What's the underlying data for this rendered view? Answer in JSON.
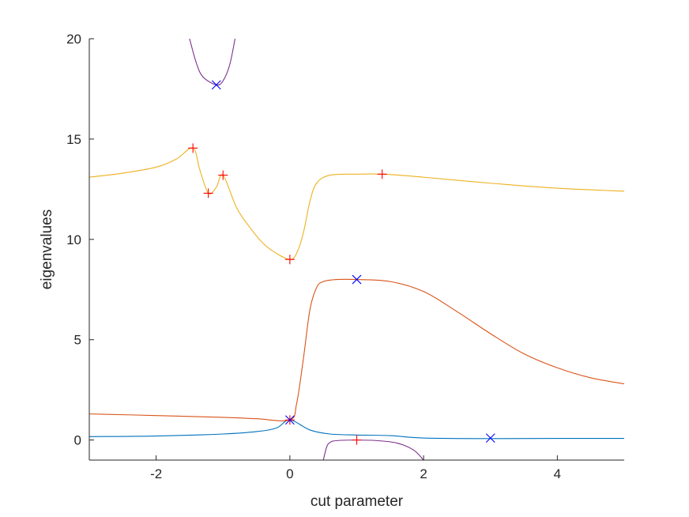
{
  "chart_data": {
    "type": "line",
    "xlabel": "cut parameter",
    "ylabel": "eigenvalues",
    "xlim": [
      -3,
      5
    ],
    "ylim": [
      -1,
      20
    ],
    "x_ticks": [
      -2,
      0,
      2,
      4
    ],
    "x_tick_labels": [
      "-2",
      "0",
      "2",
      "4"
    ],
    "y_ticks": [
      0,
      5,
      10,
      15,
      20
    ],
    "y_tick_labels": [
      "0",
      "5",
      "10",
      "15",
      "20"
    ],
    "grid": false,
    "legend": "none",
    "series": [
      {
        "color": "#0072BD",
        "points": [
          [
            -3,
            0.17
          ],
          [
            -2,
            0.2
          ],
          [
            -1,
            0.3
          ],
          [
            -0.5,
            0.42
          ],
          [
            -0.2,
            0.6
          ],
          [
            0,
            1.0
          ],
          [
            0.3,
            0.5
          ],
          [
            0.6,
            0.3
          ],
          [
            1.0,
            0.25
          ],
          [
            1.5,
            0.22
          ],
          [
            2.0,
            0.1
          ],
          [
            3.0,
            0.07
          ],
          [
            4.0,
            0.08
          ],
          [
            5.0,
            0.08
          ]
        ]
      },
      {
        "color": "#D95319",
        "points": [
          [
            -3,
            1.3
          ],
          [
            -2,
            1.22
          ],
          [
            -1,
            1.13
          ],
          [
            -0.5,
            1.06
          ],
          [
            0,
            1.0
          ],
          [
            0.1,
            1.8
          ],
          [
            0.2,
            4.0
          ],
          [
            0.3,
            6.5
          ],
          [
            0.4,
            7.6
          ],
          [
            0.5,
            7.9
          ],
          [
            0.7,
            8.0
          ],
          [
            1.0,
            8.0
          ],
          [
            1.5,
            7.9
          ],
          [
            2.0,
            7.4
          ],
          [
            2.5,
            6.4
          ],
          [
            3.0,
            5.3
          ],
          [
            3.5,
            4.3
          ],
          [
            4.0,
            3.6
          ],
          [
            4.5,
            3.1
          ],
          [
            5.0,
            2.8
          ]
        ]
      },
      {
        "color": "#EDB120",
        "points": [
          [
            -3,
            13.1
          ],
          [
            -2.5,
            13.3
          ],
          [
            -2,
            13.6
          ],
          [
            -1.7,
            14.0
          ],
          [
            -1.45,
            14.55
          ],
          [
            -1.35,
            13.5
          ],
          [
            -1.22,
            12.3
          ],
          [
            -1.1,
            12.6
          ],
          [
            -1.0,
            13.2
          ],
          [
            -0.8,
            11.6
          ],
          [
            -0.6,
            10.6
          ],
          [
            -0.4,
            9.8
          ],
          [
            -0.2,
            9.3
          ],
          [
            0,
            9.0
          ],
          [
            0.1,
            9.3
          ],
          [
            0.2,
            10.3
          ],
          [
            0.3,
            11.9
          ],
          [
            0.4,
            12.8
          ],
          [
            0.6,
            13.2
          ],
          [
            1.0,
            13.25
          ],
          [
            1.4,
            13.25
          ],
          [
            2.0,
            13.1
          ],
          [
            3.0,
            12.8
          ],
          [
            4.0,
            12.55
          ],
          [
            5.0,
            12.4
          ]
        ]
      },
      {
        "color": "#7E2F8E",
        "points": [
          [
            -1.5,
            20.0
          ],
          [
            -1.4,
            18.8
          ],
          [
            -1.3,
            18.1
          ],
          [
            -1.1,
            17.7
          ],
          [
            -1.0,
            17.9
          ],
          [
            -0.9,
            18.7
          ],
          [
            -0.82,
            20.0
          ]
        ]
      },
      {
        "color": "#7E2F8E",
        "points": [
          [
            0.5,
            -1.0
          ],
          [
            0.55,
            -0.35
          ],
          [
            0.6,
            -0.12
          ],
          [
            0.7,
            -0.03
          ],
          [
            1.0,
            0.0
          ],
          [
            1.3,
            -0.03
          ],
          [
            1.6,
            -0.15
          ],
          [
            1.85,
            -0.5
          ],
          [
            2.0,
            -1.0
          ]
        ]
      }
    ],
    "markers": [
      {
        "shape": "plus",
        "color": "#FF0000",
        "points": [
          [
            -1.45,
            14.55
          ],
          [
            -1.22,
            12.3
          ],
          [
            -1.0,
            13.2
          ],
          [
            0,
            9.0
          ],
          [
            1.38,
            13.25
          ],
          [
            0,
            1.0
          ],
          [
            1.0,
            0.0
          ]
        ]
      },
      {
        "shape": "cross",
        "color": "#0000FF",
        "points": [
          [
            -1.1,
            17.7
          ],
          [
            1.0,
            8.0
          ],
          [
            0,
            1.0
          ],
          [
            3.0,
            0.1
          ]
        ]
      }
    ]
  }
}
